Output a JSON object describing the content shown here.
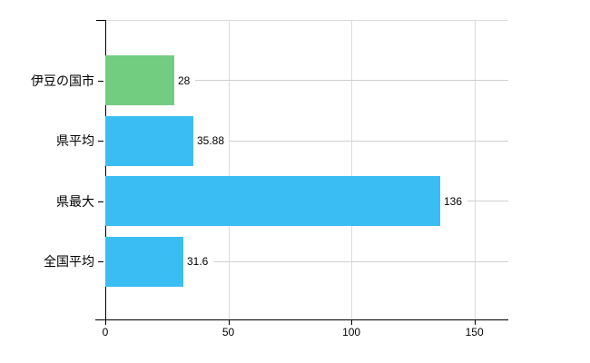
{
  "chart_data": {
    "type": "bar",
    "orientation": "horizontal",
    "title": "",
    "categories": [
      "伊豆の国市",
      "県平均",
      "県最大",
      "全国平均"
    ],
    "values": [
      28,
      35.88,
      136,
      31.6
    ],
    "value_labels": [
      "28",
      "35.88",
      "136",
      "31.6"
    ],
    "series": [
      {
        "name": "値",
        "values": [
          28,
          35.88,
          136,
          31.6
        ]
      }
    ],
    "bar_colors": [
      "#73cd80",
      "#3abdf2",
      "#3abdf2",
      "#3abdf2"
    ],
    "x_ticks": [
      0,
      50,
      100,
      150
    ],
    "x_tick_labels": [
      "0",
      "50",
      "100",
      "150"
    ],
    "xlim": [
      0,
      163.8
    ],
    "grid": true,
    "legend_position": "none"
  },
  "colors": {
    "bar_highlight": "#73cd80",
    "bar_default": "#3abdf2",
    "axis": "#000000",
    "gridline": "#dcdcdc",
    "leader_line": "#d0d0d0",
    "text": "#000000",
    "background": "#ffffff"
  }
}
